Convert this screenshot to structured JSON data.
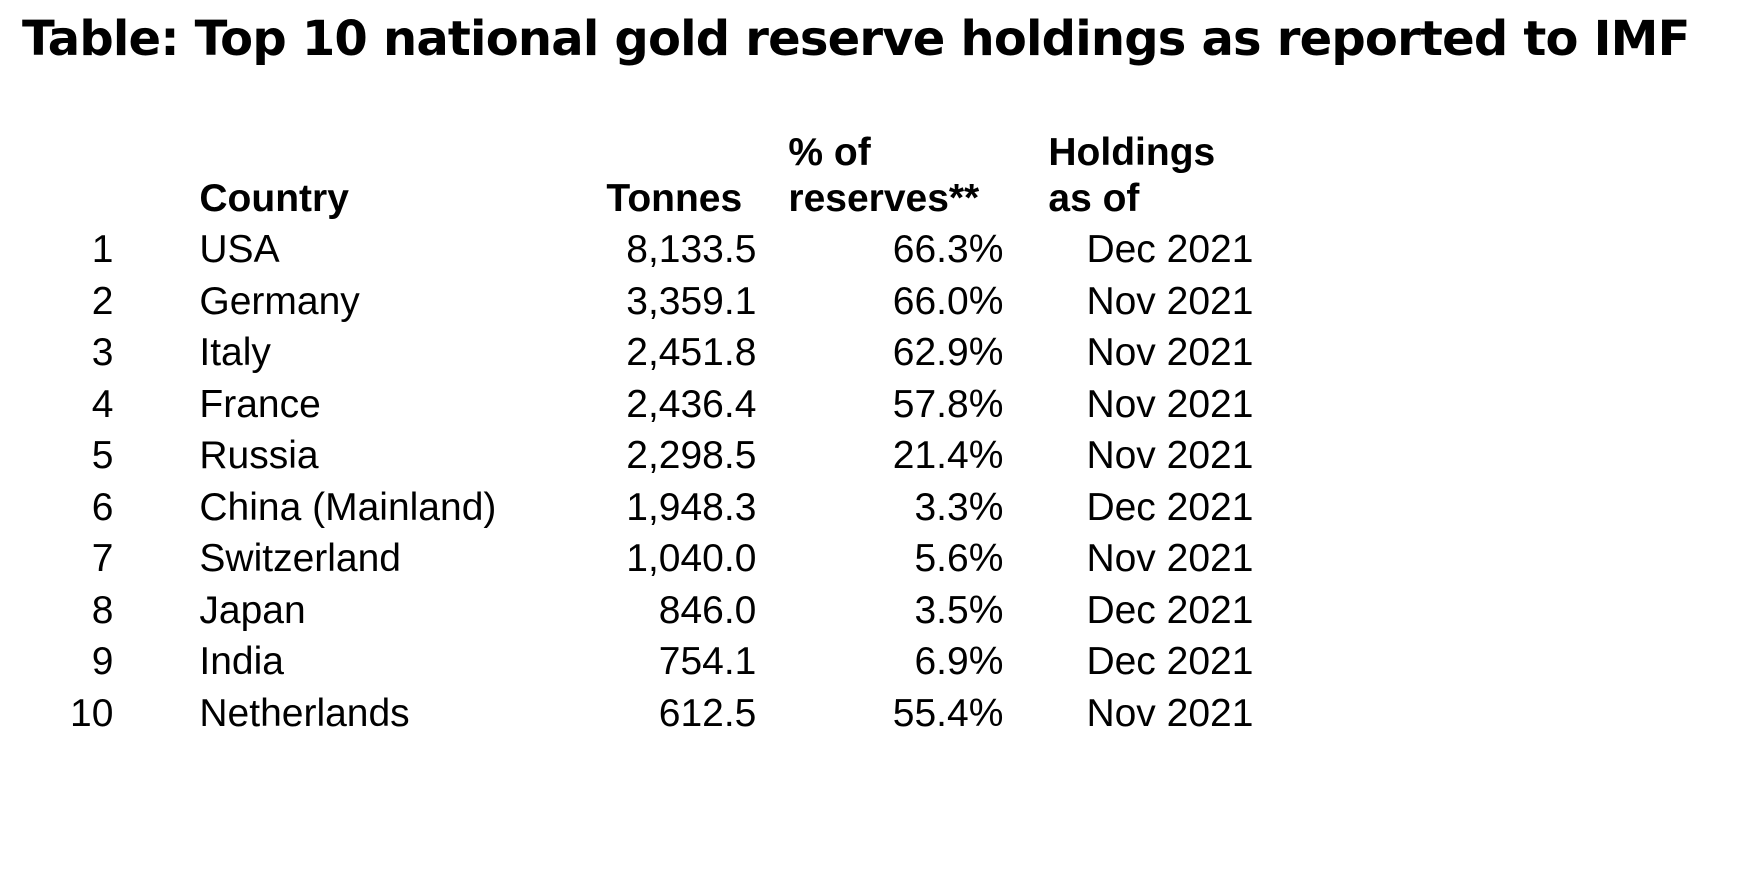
{
  "title": "Table:  Top 10 national gold reserve holdings as reported to IMF",
  "table": {
    "headers": {
      "rank": "",
      "country": "Country",
      "tonnes": "Tonnes",
      "pct_line1": "% of",
      "pct_line2": "reserves**",
      "asof_line1": "Holdings",
      "asof_line2": "as of"
    },
    "rows": [
      {
        "rank": "1",
        "country": "USA",
        "tonnes": "8,133.5",
        "pct": "66.3%",
        "as_of": "Dec 2021"
      },
      {
        "rank": "2",
        "country": "Germany",
        "tonnes": "3,359.1",
        "pct": "66.0%",
        "as_of": "Nov 2021"
      },
      {
        "rank": "3",
        "country": "Italy",
        "tonnes": "2,451.8",
        "pct": "62.9%",
        "as_of": "Nov 2021"
      },
      {
        "rank": "4",
        "country": "France",
        "tonnes": "2,436.4",
        "pct": "57.8%",
        "as_of": "Nov 2021"
      },
      {
        "rank": "5",
        "country": "Russia",
        "tonnes": "2,298.5",
        "pct": "21.4%",
        "as_of": "Nov 2021"
      },
      {
        "rank": "6",
        "country": "China (Mainland)",
        "tonnes": "1,948.3",
        "pct": "3.3%",
        "as_of": "Dec 2021"
      },
      {
        "rank": "7",
        "country": "Switzerland",
        "tonnes": "1,040.0",
        "pct": "5.6%",
        "as_of": "Nov 2021"
      },
      {
        "rank": "8",
        "country": "Japan",
        "tonnes": "846.0",
        "pct": "3.5%",
        "as_of": "Dec 2021"
      },
      {
        "rank": "9",
        "country": "India",
        "tonnes": "754.1",
        "pct": "6.9%",
        "as_of": "Dec 2021"
      },
      {
        "rank": "10",
        "country": "Netherlands",
        "tonnes": "612.5",
        "pct": "55.4%",
        "as_of": "Nov 2021"
      }
    ]
  }
}
